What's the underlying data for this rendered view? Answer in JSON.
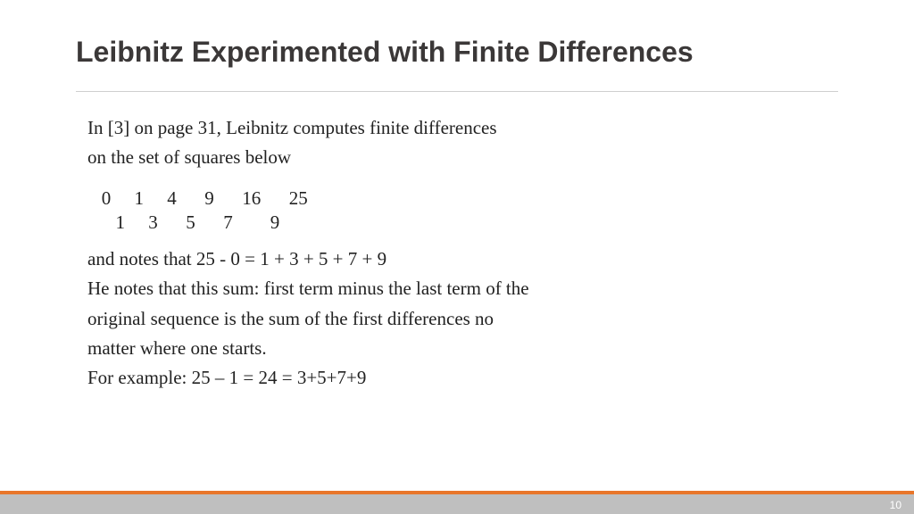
{
  "colors": {
    "title": "#3b3838",
    "body_text": "#222222",
    "hr": "#cfcfcf",
    "footer_accent": "#e8762a",
    "footer_main": "#bfbfbf",
    "page_num_text": "#ffffff",
    "background": "#ffffff"
  },
  "title": "Leibnitz Experimented with Finite Differences",
  "intro_line1": "In [3] on page 31, Leibnitz computes finite differences",
  "intro_line2": " on the set of squares below",
  "squares_row": "   0     1     4      9      16      25",
  "differences_row": "      1     3      5      7        9",
  "note_line": " and notes that     25 - 0 = 1 + 3 + 5 + 7 + 9",
  "explain_line1": " He notes that this sum: first term minus the last term of the",
  "explain_line2": "original sequence is the sum of the first differences no",
  "explain_line3": "matter where one starts.",
  "example_line": "For example:    25 – 1 = 24 = 3+5+7+9",
  "page_number": "10"
}
